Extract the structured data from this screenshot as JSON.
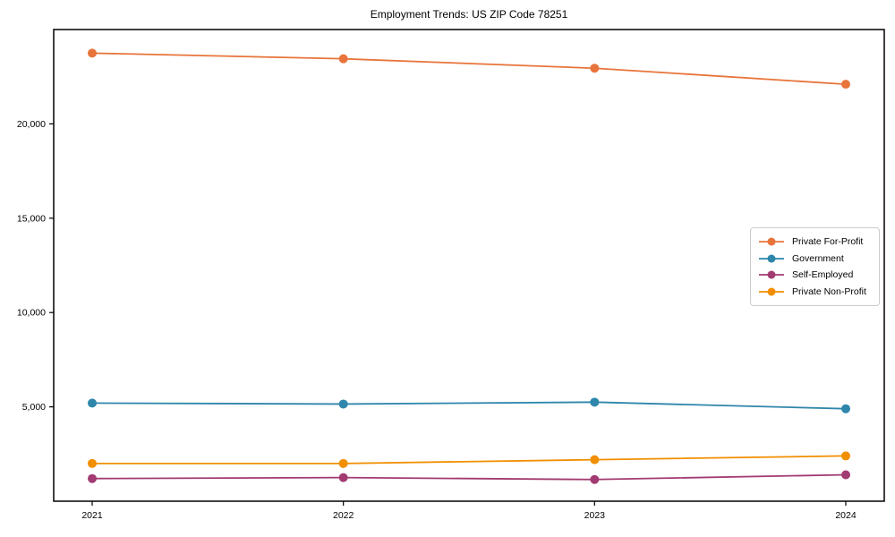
{
  "figure": {
    "background": "#ffffff",
    "spine_color": "#000000",
    "text_color": "#000000"
  },
  "chart_data": {
    "type": "line",
    "title": "Employment Trends: US ZIP Code 78251",
    "xlabel": "",
    "ylabel": "",
    "categories": [
      "2021",
      "2022",
      "2023",
      "2024"
    ],
    "series": [
      {
        "name": "Private For-Profit",
        "color": "#E8743B",
        "values": [
          23750,
          23450,
          22950,
          22100
        ]
      },
      {
        "name": "Government",
        "color": "#2E86AB",
        "values": [
          5200,
          5150,
          5250,
          4900
        ]
      },
      {
        "name": "Self-Employed",
        "color": "#A23B72",
        "values": [
          1200,
          1250,
          1150,
          1400
        ]
      },
      {
        "name": "Private Non-Profit",
        "color": "#F18F01",
        "values": [
          2000,
          2000,
          2200,
          2400
        ]
      }
    ],
    "ylim": [
      0,
      25000
    ],
    "yticks": [
      {
        "value": 5000,
        "label": "5,000"
      },
      {
        "value": 10000,
        "label": "10,000"
      },
      {
        "value": 15000,
        "label": "15,000"
      },
      {
        "value": 20000,
        "label": "20,000"
      }
    ],
    "grid": false,
    "legend_position": "center-right",
    "marker": "circle"
  }
}
